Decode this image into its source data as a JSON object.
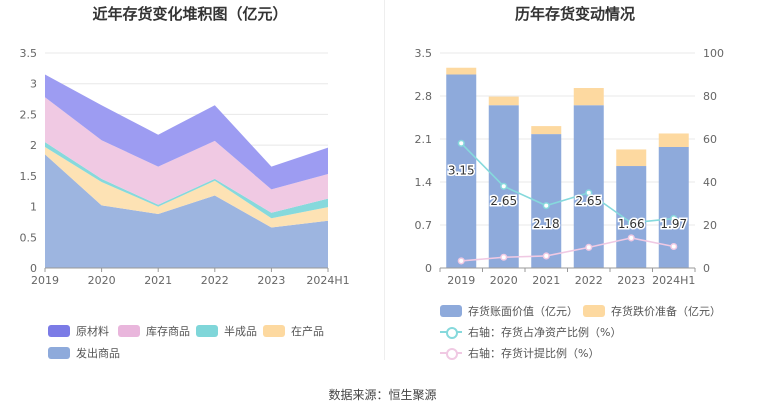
{
  "source_text": "数据来源：恒生聚源",
  "chart_data": [
    {
      "type": "area",
      "title": "近年存货变化堆积图（亿元）",
      "categories": [
        "2019",
        "2020",
        "2021",
        "2022",
        "2023",
        "2024H1"
      ],
      "stacked": true,
      "ylim": [
        0,
        3.5
      ],
      "yticks": [
        "0",
        "0.5",
        "1",
        "1.5",
        "2",
        "2.5",
        "3",
        "3.5"
      ],
      "series": [
        {
          "name": "发出商品",
          "color": "#9db5e0",
          "values": [
            1.85,
            1.02,
            0.88,
            1.18,
            0.66,
            0.77
          ]
        },
        {
          "name": "在产品",
          "color": "#fde2b4",
          "values": [
            0.12,
            0.38,
            0.12,
            0.24,
            0.15,
            0.22
          ]
        },
        {
          "name": "半成品",
          "color": "#86d9dc",
          "values": [
            0.08,
            0.05,
            0.03,
            0.03,
            0.09,
            0.14
          ]
        },
        {
          "name": "库存商品",
          "color": "#f0c9e3",
          "values": [
            0.73,
            0.63,
            0.62,
            0.62,
            0.38,
            0.4
          ]
        },
        {
          "name": "原材料",
          "color": "#9d9cf2",
          "values": [
            0.37,
            0.57,
            0.52,
            0.58,
            0.37,
            0.43
          ]
        }
      ],
      "legend": [
        {
          "name": "原材料",
          "color": "#7b7be6"
        },
        {
          "name": "库存商品",
          "color": "#e9b6dc"
        },
        {
          "name": "半成品",
          "color": "#7fd6d9"
        },
        {
          "name": "在产品",
          "color": "#fdd9a0"
        },
        {
          "name": "发出商品",
          "color": "#8eaadb"
        }
      ]
    },
    {
      "type": "bar",
      "title": "历年存货变动情况",
      "categories": [
        "2019",
        "2020",
        "2021",
        "2022",
        "2023",
        "2024H1"
      ],
      "ylim": [
        0,
        3.5
      ],
      "yticks": [
        "0",
        "0.7",
        "1.4",
        "2.1",
        "2.8",
        "3.5"
      ],
      "y2lim": [
        0,
        100
      ],
      "y2ticks": [
        "0",
        "20",
        "40",
        "60",
        "80",
        "100"
      ],
      "series": [
        {
          "name": "存货账面价值（亿元）",
          "color": "#8eaadb",
          "values": [
            3.15,
            2.65,
            2.18,
            2.65,
            1.66,
            1.97
          ],
          "labels": [
            "3.15",
            "2.65",
            "2.18",
            "2.65",
            "1.66",
            "1.97"
          ]
        },
        {
          "name": "存货跌价准备（亿元）",
          "color": "#fdd9a0",
          "values": [
            0.11,
            0.14,
            0.13,
            0.28,
            0.27,
            0.22
          ]
        }
      ],
      "lines": [
        {
          "name": "右轴：存货占净资产比例（%）",
          "color": "#86d9dc",
          "axis": "right",
          "values": [
            58,
            38,
            29,
            35,
            21,
            23
          ]
        },
        {
          "name": "右轴：存货计提比例（%）",
          "color": "#f0c9e3",
          "axis": "right",
          "values": [
            3.3,
            5.0,
            5.6,
            9.6,
            14,
            10
          ]
        }
      ]
    }
  ]
}
